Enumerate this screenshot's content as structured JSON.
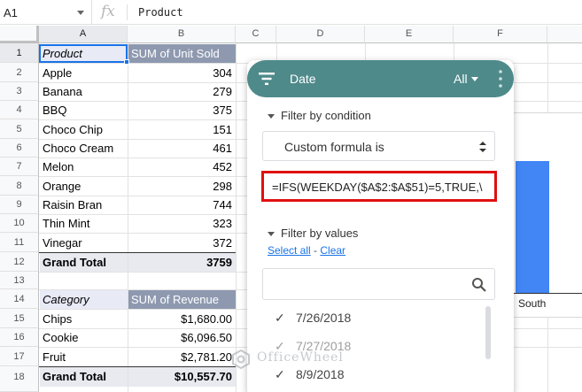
{
  "formula_bar": {
    "cell_ref": "A1",
    "fx_label": "fx",
    "content": "Product"
  },
  "columns": [
    "A",
    "B",
    "C",
    "D",
    "E",
    "F"
  ],
  "rows": [
    "1",
    "2",
    "3",
    "4",
    "5",
    "6",
    "7",
    "8",
    "9",
    "10",
    "11",
    "12",
    "13",
    "14",
    "15",
    "16",
    "17",
    "18"
  ],
  "pivot1": {
    "header_col1": "Product",
    "header_col2": "SUM of Unit Sold",
    "items": [
      {
        "name": "Apple",
        "value": "304"
      },
      {
        "name": "Banana",
        "value": "279"
      },
      {
        "name": "BBQ",
        "value": "375"
      },
      {
        "name": "Choco Chip",
        "value": "151"
      },
      {
        "name": "Choco Cream",
        "value": "461"
      },
      {
        "name": "Melon",
        "value": "452"
      },
      {
        "name": "Orange",
        "value": "298"
      },
      {
        "name": "Raisin Bran",
        "value": "744"
      },
      {
        "name": "Thin Mint",
        "value": "323"
      },
      {
        "name": "Vinegar",
        "value": "372"
      }
    ],
    "total_label": "Grand Total",
    "total_value": "3759"
  },
  "pivot2": {
    "header_col1": "Category",
    "header_col2": "SUM of Revenue",
    "items": [
      {
        "name": "Chips",
        "value": "$1,680.00"
      },
      {
        "name": "Cookie",
        "value": "$6,096.50"
      },
      {
        "name": "Fruit",
        "value": "$2,781.20"
      }
    ],
    "total_label": "Grand Total",
    "total_value": "$10,557.70"
  },
  "chart": {
    "category_label": "South",
    "bar_color": "#4285f4"
  },
  "filter_panel": {
    "header_color": "#4f8a8b",
    "title": "Date",
    "status": "All",
    "condition_section": "Filter by condition",
    "condition_select": "Custom formula is",
    "formula": "=IFS(WEEKDAY($A$2:$A$51)=5,TRUE,\\",
    "values_section": "Filter by values",
    "select_all": "Select all",
    "separator": " - ",
    "clear": "Clear",
    "values": [
      "7/26/2018",
      "7/27/2018",
      "8/9/2018"
    ]
  },
  "watermark": "OfficeWheel",
  "colors": {
    "selection": "#1a73e8",
    "highlight_border": "#e01010",
    "pivot_header": "#8e99b0"
  }
}
